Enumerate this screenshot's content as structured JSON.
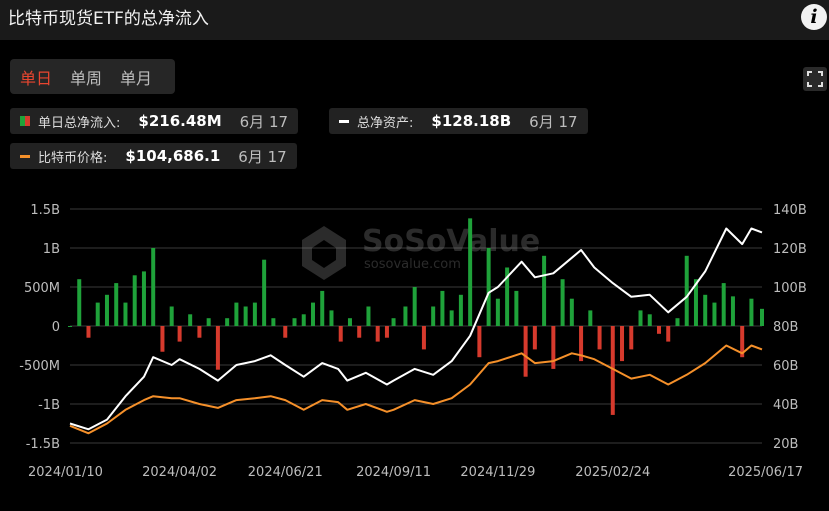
{
  "title": "比特币现货ETF的总净流入",
  "info_icon": "info-icon",
  "tabs": [
    {
      "label": "单日",
      "active": true
    },
    {
      "label": "单周",
      "active": false
    },
    {
      "label": "单月",
      "active": false
    }
  ],
  "fullscreen_icon": "fullscreen-icon",
  "stats": {
    "daily_inflow": {
      "label": "单日总净流入:",
      "value": "$216.48M",
      "date": "6月 17"
    },
    "net_assets": {
      "label": "总净资产:",
      "value": "$128.18B",
      "date": "6月 17"
    },
    "btc_price": {
      "label": "比特币价格:",
      "value": "$104,686.1",
      "date": "6月 17"
    }
  },
  "watermark": {
    "brand": "SoSoValue",
    "url": "sosovalue.com"
  },
  "colors": {
    "inflow": "#1fa23a",
    "outflow": "#d63a2d",
    "assets_line": "#ffffff",
    "price_line": "#f5902a",
    "background": "#000000"
  },
  "chart_data": {
    "type": "bar+line",
    "x_ticks": [
      "2024/01/10",
      "2024/04/02",
      "2024/06/21",
      "2024/09/11",
      "2024/11/29",
      "2025/02/24",
      "2025/06/17"
    ],
    "left_axis": {
      "ticks": [
        "1.5B",
        "1B",
        "500M",
        "0",
        "-500M",
        "-1B",
        "-1.5B"
      ],
      "range": [
        -1.5,
        1.5
      ],
      "unit": "B USD"
    },
    "right_axis": {
      "ticks": [
        "140B",
        "120B",
        "100B",
        "80B",
        "60B",
        "40B",
        "20B"
      ],
      "range": [
        20,
        140
      ],
      "unit": "B USD"
    },
    "grid": true,
    "series": [
      {
        "name": "单日总净流入",
        "kind": "bar",
        "axis": "left",
        "points": [
          [
            "2024/01/10",
            0.0
          ],
          [
            "2024/01/17",
            0.6
          ],
          [
            "2024/01/24",
            -0.15
          ],
          [
            "2024/01/31",
            0.3
          ],
          [
            "2024/02/07",
            0.4
          ],
          [
            "2024/02/14",
            0.55
          ],
          [
            "2024/02/21",
            0.3
          ],
          [
            "2024/02/28",
            0.65
          ],
          [
            "2024/03/06",
            0.7
          ],
          [
            "2024/03/13",
            1.0
          ],
          [
            "2024/03/20",
            -0.33
          ],
          [
            "2024/03/27",
            0.25
          ],
          [
            "2024/04/02",
            -0.2
          ],
          [
            "2024/04/10",
            0.15
          ],
          [
            "2024/04/17",
            -0.15
          ],
          [
            "2024/04/24",
            0.1
          ],
          [
            "2024/05/01",
            -0.56
          ],
          [
            "2024/05/08",
            0.1
          ],
          [
            "2024/05/15",
            0.3
          ],
          [
            "2024/05/22",
            0.25
          ],
          [
            "2024/05/29",
            0.3
          ],
          [
            "2024/06/05",
            0.85
          ],
          [
            "2024/06/12",
            0.1
          ],
          [
            "2024/06/21",
            -0.15
          ],
          [
            "2024/06/28",
            0.1
          ],
          [
            "2024/07/05",
            0.15
          ],
          [
            "2024/07/12",
            0.3
          ],
          [
            "2024/07/19",
            0.45
          ],
          [
            "2024/07/26",
            0.2
          ],
          [
            "2024/08/02",
            -0.2
          ],
          [
            "2024/08/09",
            0.1
          ],
          [
            "2024/08/16",
            -0.15
          ],
          [
            "2024/08/23",
            0.25
          ],
          [
            "2024/08/30",
            -0.2
          ],
          [
            "2024/09/06",
            -0.15
          ],
          [
            "2024/09/11",
            0.1
          ],
          [
            "2024/09/20",
            0.25
          ],
          [
            "2024/09/27",
            0.5
          ],
          [
            "2024/10/04",
            -0.3
          ],
          [
            "2024/10/11",
            0.25
          ],
          [
            "2024/10/18",
            0.45
          ],
          [
            "2024/10/25",
            0.2
          ],
          [
            "2024/11/01",
            0.4
          ],
          [
            "2024/11/08",
            1.38
          ],
          [
            "2024/11/15",
            -0.4
          ],
          [
            "2024/11/22",
            1.0
          ],
          [
            "2024/11/29",
            0.35
          ],
          [
            "2024/12/06",
            0.75
          ],
          [
            "2024/12/13",
            0.45
          ],
          [
            "2024/12/20",
            -0.65
          ],
          [
            "2024/12/27",
            -0.3
          ],
          [
            "2025/01/03",
            0.9
          ],
          [
            "2025/01/10",
            -0.55
          ],
          [
            "2025/01/17",
            0.6
          ],
          [
            "2025/01/24",
            0.35
          ],
          [
            "2025/01/31",
            -0.45
          ],
          [
            "2025/02/07",
            0.2
          ],
          [
            "2025/02/14",
            -0.3
          ],
          [
            "2025/02/24",
            -1.14
          ],
          [
            "2025/03/03",
            -0.45
          ],
          [
            "2025/03/10",
            -0.3
          ],
          [
            "2025/03/17",
            0.2
          ],
          [
            "2025/03/24",
            0.15
          ],
          [
            "2025/03/31",
            -0.1
          ],
          [
            "2025/04/07",
            -0.2
          ],
          [
            "2025/04/14",
            0.1
          ],
          [
            "2025/04/21",
            0.9
          ],
          [
            "2025/04/28",
            0.6
          ],
          [
            "2025/05/05",
            0.4
          ],
          [
            "2025/05/12",
            0.3
          ],
          [
            "2025/05/19",
            0.55
          ],
          [
            "2025/05/26",
            0.38
          ],
          [
            "2025/06/02",
            -0.4
          ],
          [
            "2025/06/09",
            0.35
          ],
          [
            "2025/06/17",
            0.22
          ]
        ]
      },
      {
        "name": "总净资产",
        "kind": "line",
        "axis": "right",
        "points": [
          [
            "2024/01/10",
            30
          ],
          [
            "2024/01/24",
            27
          ],
          [
            "2024/02/07",
            32
          ],
          [
            "2024/02/21",
            44
          ],
          [
            "2024/03/06",
            54
          ],
          [
            "2024/03/13",
            64
          ],
          [
            "2024/03/27",
            60
          ],
          [
            "2024/04/02",
            63
          ],
          [
            "2024/04/17",
            58
          ],
          [
            "2024/05/01",
            52
          ],
          [
            "2024/05/15",
            60
          ],
          [
            "2024/05/29",
            62
          ],
          [
            "2024/06/10",
            65
          ],
          [
            "2024/06/21",
            60
          ],
          [
            "2024/07/05",
            54
          ],
          [
            "2024/07/19",
            61
          ],
          [
            "2024/07/31",
            58
          ],
          [
            "2024/08/07",
            52
          ],
          [
            "2024/08/21",
            56
          ],
          [
            "2024/09/06",
            50
          ],
          [
            "2024/09/11",
            52
          ],
          [
            "2024/09/27",
            58
          ],
          [
            "2024/10/11",
            55
          ],
          [
            "2024/10/25",
            62
          ],
          [
            "2024/11/08",
            75
          ],
          [
            "2024/11/22",
            97
          ],
          [
            "2024/11/29",
            100
          ],
          [
            "2024/12/17",
            113
          ],
          [
            "2024/12/27",
            105
          ],
          [
            "2025/01/10",
            107
          ],
          [
            "2025/01/24",
            115
          ],
          [
            "2025/01/31",
            119
          ],
          [
            "2025/02/10",
            110
          ],
          [
            "2025/02/24",
            102
          ],
          [
            "2025/03/10",
            95
          ],
          [
            "2025/03/24",
            96
          ],
          [
            "2025/04/07",
            87
          ],
          [
            "2025/04/21",
            95
          ],
          [
            "2025/05/05",
            108
          ],
          [
            "2025/05/21",
            130
          ],
          [
            "2025/06/02",
            122
          ],
          [
            "2025/06/09",
            130
          ],
          [
            "2025/06/17",
            128
          ]
        ]
      },
      {
        "name": "比特币价格",
        "kind": "line",
        "axis": "right",
        "points": [
          [
            "2024/01/10",
            28.8
          ],
          [
            "2024/01/24",
            25
          ],
          [
            "2024/02/07",
            30
          ],
          [
            "2024/02/21",
            37
          ],
          [
            "2024/03/06",
            42
          ],
          [
            "2024/03/13",
            44
          ],
          [
            "2024/03/27",
            43
          ],
          [
            "2024/04/02",
            43
          ],
          [
            "2024/04/17",
            40
          ],
          [
            "2024/05/01",
            38
          ],
          [
            "2024/05/15",
            42
          ],
          [
            "2024/05/29",
            43
          ],
          [
            "2024/06/10",
            44
          ],
          [
            "2024/06/21",
            42
          ],
          [
            "2024/07/05",
            37
          ],
          [
            "2024/07/19",
            42
          ],
          [
            "2024/07/31",
            41
          ],
          [
            "2024/08/07",
            37
          ],
          [
            "2024/08/21",
            40
          ],
          [
            "2024/09/06",
            36
          ],
          [
            "2024/09/11",
            37
          ],
          [
            "2024/09/27",
            42
          ],
          [
            "2024/10/11",
            40
          ],
          [
            "2024/10/25",
            43
          ],
          [
            "2024/11/08",
            50
          ],
          [
            "2024/11/22",
            61
          ],
          [
            "2024/11/29",
            62
          ],
          [
            "2024/12/17",
            66
          ],
          [
            "2024/12/27",
            61
          ],
          [
            "2025/01/10",
            62
          ],
          [
            "2025/01/24",
            66
          ],
          [
            "2025/01/31",
            65
          ],
          [
            "2025/02/10",
            63
          ],
          [
            "2025/02/24",
            58
          ],
          [
            "2025/03/10",
            53
          ],
          [
            "2025/03/24",
            55
          ],
          [
            "2025/04/07",
            50
          ],
          [
            "2025/04/21",
            55
          ],
          [
            "2025/05/05",
            61
          ],
          [
            "2025/05/21",
            70
          ],
          [
            "2025/06/02",
            66
          ],
          [
            "2025/06/09",
            70
          ],
          [
            "2025/06/17",
            68
          ]
        ]
      }
    ]
  }
}
